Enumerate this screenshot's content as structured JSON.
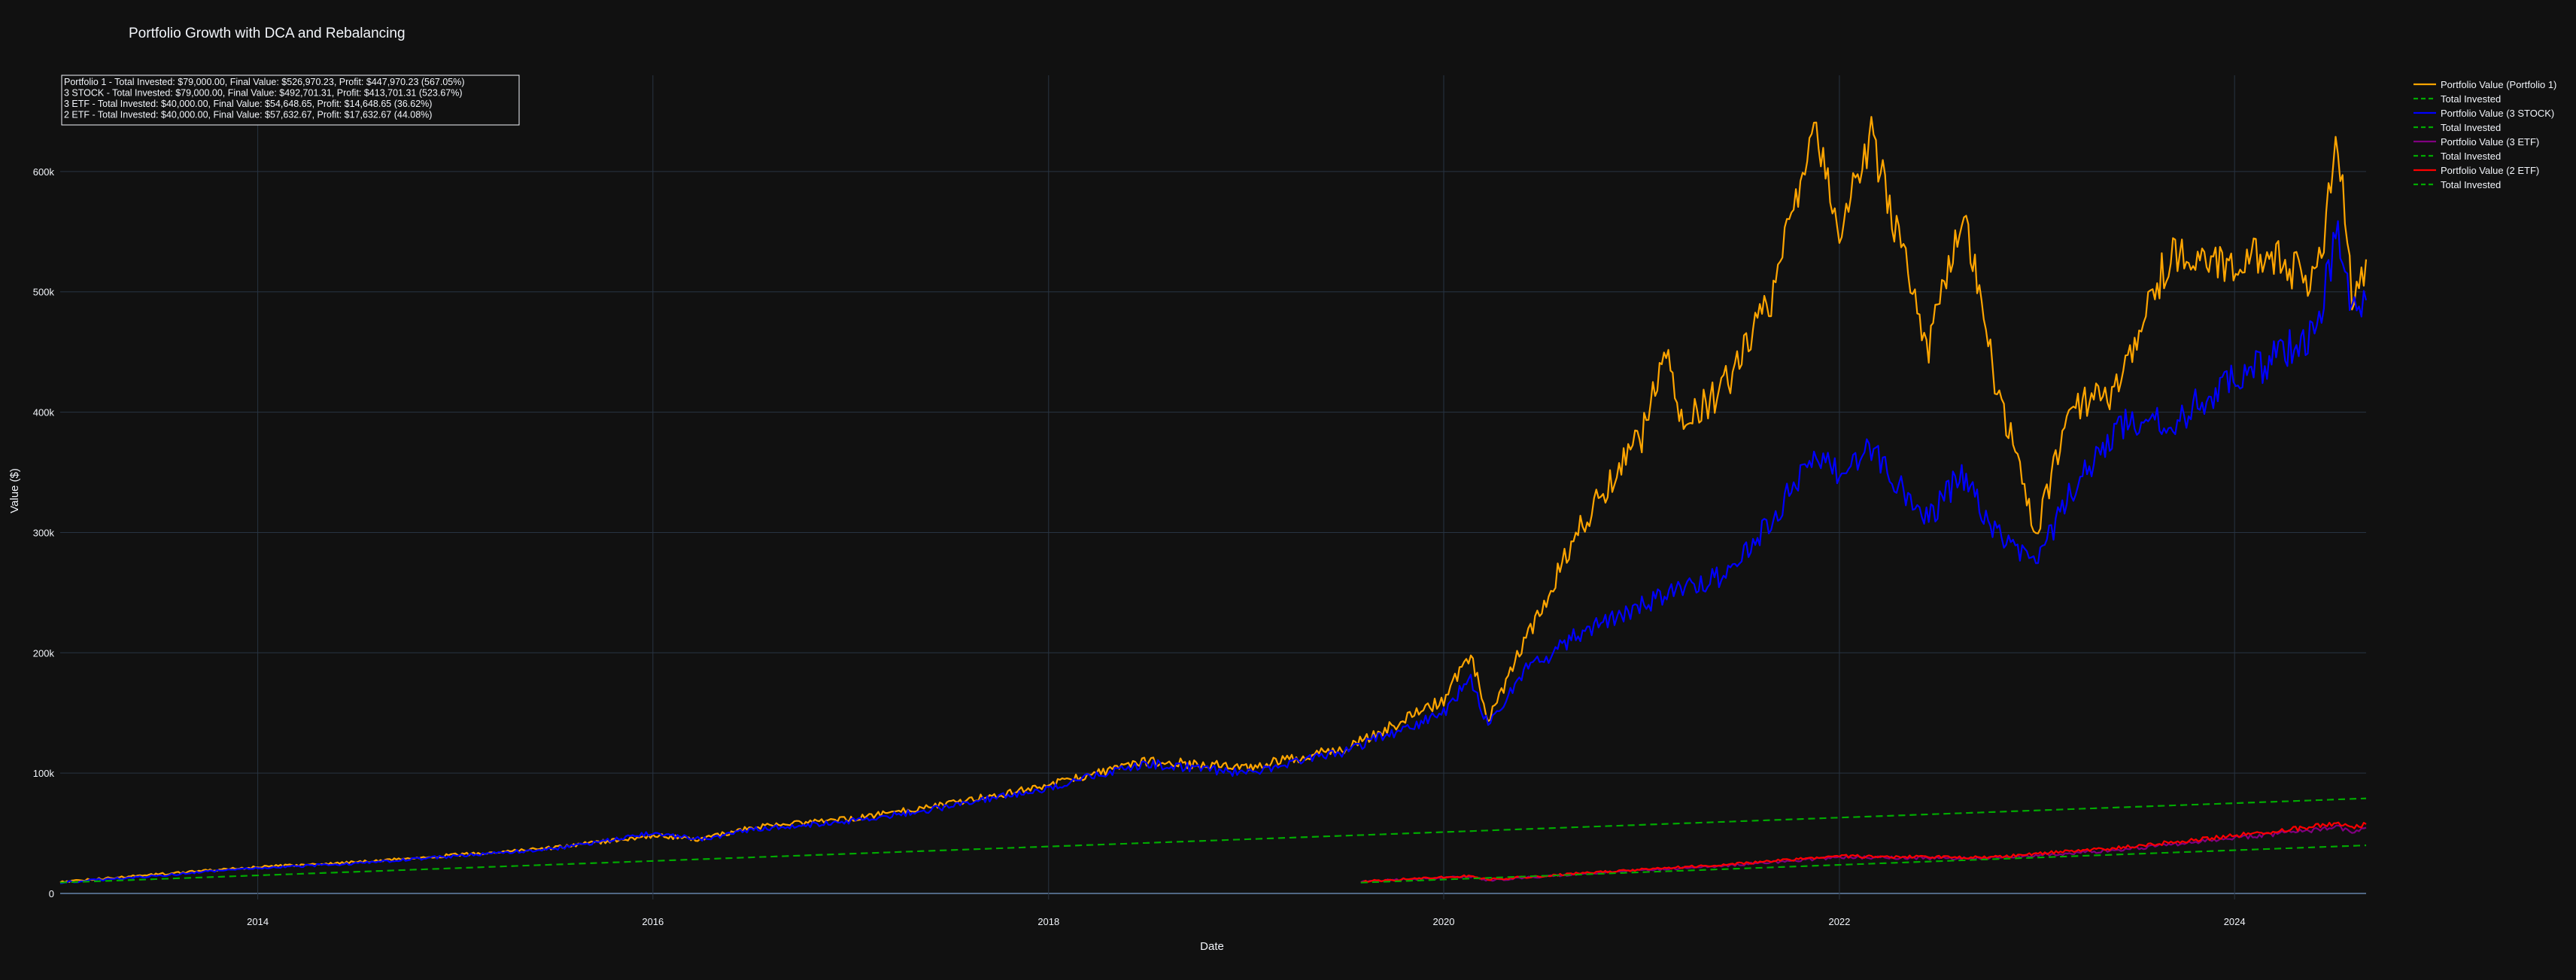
{
  "chart_data": {
    "type": "line",
    "title": "Portfolio Growth with DCA and Rebalancing",
    "xlabel": "Date",
    "ylabel": "Value ($)",
    "xlim": [
      "2013-01-01",
      "2024-08-31"
    ],
    "ylim": [
      -5000,
      680000
    ],
    "x_ticks": [
      {
        "value": "2014-01-01",
        "label": "2014"
      },
      {
        "value": "2016-01-01",
        "label": "2016"
      },
      {
        "value": "2018-01-01",
        "label": "2018"
      },
      {
        "value": "2020-01-01",
        "label": "2020"
      },
      {
        "value": "2022-01-01",
        "label": "2022"
      },
      {
        "value": "2024-01-01",
        "label": "2024"
      }
    ],
    "y_ticks": [
      {
        "value": 0,
        "label": "0"
      },
      {
        "value": 100000,
        "label": "100k"
      },
      {
        "value": 200000,
        "label": "200k"
      },
      {
        "value": 300000,
        "label": "300k"
      },
      {
        "value": 400000,
        "label": "400k"
      },
      {
        "value": 500000,
        "label": "500k"
      },
      {
        "value": 600000,
        "label": "600k"
      }
    ],
    "grid": true,
    "legend_position": "right",
    "annotation_lines": [
      "Portfolio 1 - Total Invested: $79,000.00, Final Value: $526,970.23, Profit: $447,970.23 (567.05%)",
      "3 STOCK - Total Invested: $79,000.00, Final Value: $492,701.31, Profit: $413,701.31 (523.67%)",
      "3 ETF - Total Invested: $40,000.00, Final Value: $54,648.65, Profit: $14,648.65 (36.62%)",
      "2 ETF - Total Invested: $40,000.00, Final Value: $57,632.67, Profit: $17,632.67 (44.08%)"
    ],
    "series": [
      {
        "name": "Portfolio Value (Portfolio 1)",
        "color": "#ffa500",
        "dash": "solid",
        "x": [
          "2013-01-01",
          "2013-07-01",
          "2014-01-01",
          "2014-07-01",
          "2015-01-01",
          "2015-07-01",
          "2016-01-01",
          "2016-04-01",
          "2016-07-01",
          "2017-01-01",
          "2017-07-01",
          "2018-01-01",
          "2018-07-01",
          "2019-01-01",
          "2019-07-01",
          "2020-01-01",
          "2020-02-20",
          "2020-03-23",
          "2020-06-01",
          "2020-09-01",
          "2021-01-01",
          "2021-02-15",
          "2021-03-15",
          "2021-06-01",
          "2021-09-01",
          "2021-11-15",
          "2022-01-01",
          "2022-03-01",
          "2022-06-15",
          "2022-08-15",
          "2022-10-15",
          "2022-12-30",
          "2023-03-01",
          "2023-06-01",
          "2023-09-01",
          "2023-12-01",
          "2024-03-01",
          "2024-06-01",
          "2024-07-10",
          "2024-08-05",
          "2024-08-31"
        ],
        "y": [
          9500,
          16000,
          22000,
          26000,
          32000,
          38000,
          48000,
          45000,
          55000,
          62000,
          75000,
          90000,
          110000,
          105000,
          120000,
          160000,
          200000,
          145000,
          210000,
          300000,
          380000,
          450000,
          390000,
          420000,
          500000,
          640000,
          550000,
          630000,
          450000,
          570000,
          430000,
          300000,
          400000,
          420000,
          530000,
          520000,
          530000,
          510000,
          630000,
          500000,
          527000
        ]
      },
      {
        "name": "Total Invested",
        "color": "#00aa00",
        "dash": "dashed",
        "x": [
          "2013-01-01",
          "2024-08-31"
        ],
        "y": [
          9000,
          79000
        ]
      },
      {
        "name": "Portfolio Value (3 STOCK)",
        "color": "#0000ff",
        "dash": "solid",
        "x": [
          "2013-01-01",
          "2013-07-01",
          "2014-01-01",
          "2014-07-01",
          "2015-01-01",
          "2015-07-01",
          "2016-01-01",
          "2016-04-01",
          "2016-07-01",
          "2017-01-01",
          "2017-07-01",
          "2018-01-01",
          "2018-07-01",
          "2019-01-01",
          "2019-07-01",
          "2020-01-01",
          "2020-02-20",
          "2020-03-23",
          "2020-06-01",
          "2020-09-01",
          "2021-01-01",
          "2021-06-01",
          "2021-09-01",
          "2021-11-15",
          "2022-01-01",
          "2022-03-01",
          "2022-06-15",
          "2022-08-15",
          "2022-10-15",
          "2022-12-30",
          "2023-03-01",
          "2023-06-01",
          "2023-09-01",
          "2023-12-01",
          "2024-03-01",
          "2024-06-01",
          "2024-07-10",
          "2024-08-05",
          "2024-08-31"
        ],
        "y": [
          9000,
          15000,
          21000,
          25000,
          31000,
          37000,
          50000,
          45000,
          53000,
          60000,
          72000,
          88000,
          108000,
          100000,
          118000,
          150000,
          180000,
          140000,
          185000,
          215000,
          240000,
          265000,
          310000,
          370000,
          350000,
          370000,
          310000,
          350000,
          300000,
          275000,
          330000,
          390000,
          390000,
          420000,
          440000,
          470000,
          550000,
          480000,
          493000
        ]
      },
      {
        "name": "Total Invested",
        "color": "#00aa00",
        "dash": "dashed",
        "x": [
          "2013-01-01",
          "2024-08-31"
        ],
        "y": [
          9000,
          79000
        ]
      },
      {
        "name": "Portfolio Value (3 ETF)",
        "color": "#800080",
        "dash": "solid",
        "x": [
          "2019-08-01",
          "2020-01-01",
          "2020-02-20",
          "2020-03-23",
          "2020-09-01",
          "2021-06-01",
          "2022-01-01",
          "2022-09-30",
          "2023-06-01",
          "2024-01-01",
          "2024-07-15",
          "2024-08-05",
          "2024-08-31"
        ],
        "y": [
          10000,
          13000,
          14000,
          11000,
          16000,
          23000,
          30000,
          29000,
          36000,
          46000,
          55000,
          51000,
          54600
        ]
      },
      {
        "name": "Total Invested",
        "color": "#00aa00",
        "dash": "dashed",
        "x": [
          "2019-08-01",
          "2024-08-31"
        ],
        "y": [
          9000,
          40000
        ]
      },
      {
        "name": "Portfolio Value (2 ETF)",
        "color": "#ff0000",
        "dash": "solid",
        "x": [
          "2019-08-01",
          "2020-01-01",
          "2020-02-20",
          "2020-03-23",
          "2020-09-01",
          "2021-06-01",
          "2022-01-01",
          "2022-09-30",
          "2023-06-01",
          "2024-01-01",
          "2024-07-15",
          "2024-08-05",
          "2024-08-31"
        ],
        "y": [
          10000,
          13500,
          14500,
          11500,
          16500,
          24000,
          31000,
          30000,
          38000,
          48000,
          58000,
          54000,
          57600
        ]
      },
      {
        "name": "Total Invested",
        "color": "#00aa00",
        "dash": "dashed",
        "x": [
          "2019-08-01",
          "2024-08-31"
        ],
        "y": [
          9000,
          40000
        ]
      }
    ]
  },
  "colors": {
    "background": "#111111",
    "grid": "#283442",
    "text": "#f2f5fa"
  }
}
